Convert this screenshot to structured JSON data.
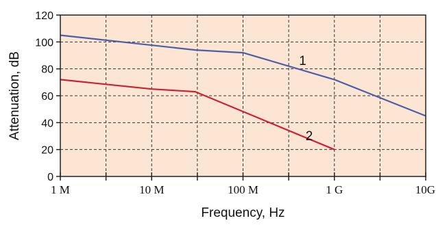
{
  "chart_data": {
    "type": "line",
    "title": "",
    "xlabel": "Frequency, Hz",
    "ylabel": "Attenuation, dB",
    "x_scale": "log",
    "x_unit": "Hz",
    "xlim": [
      1000000,
      10000000000
    ],
    "ylim": [
      0,
      120
    ],
    "x_ticks": [
      {
        "value": 1000000,
        "label": "1 M"
      },
      {
        "value": 10000000,
        "label": "10 M"
      },
      {
        "value": 100000000,
        "label": "100 M"
      },
      {
        "value": 1000000000,
        "label": "1 G"
      },
      {
        "value": 10000000000,
        "label": "10G"
      }
    ],
    "y_ticks": [
      0,
      20,
      40,
      60,
      80,
      100,
      120
    ],
    "grid": true,
    "background_color": "#fde5d4",
    "series": [
      {
        "name": "1",
        "color": "#4a5fa8",
        "points": [
          {
            "x": 1000000,
            "y": 105
          },
          {
            "x": 30000000,
            "y": 94
          },
          {
            "x": 100000000,
            "y": 92
          },
          {
            "x": 1000000000,
            "y": 72
          },
          {
            "x": 10000000000,
            "y": 45
          }
        ]
      },
      {
        "name": "2",
        "color": "#cc2233",
        "points": [
          {
            "x": 1000000,
            "y": 72
          },
          {
            "x": 10000000,
            "y": 65
          },
          {
            "x": 30000000,
            "y": 63
          },
          {
            "x": 1000000000,
            "y": 20
          }
        ]
      }
    ]
  }
}
